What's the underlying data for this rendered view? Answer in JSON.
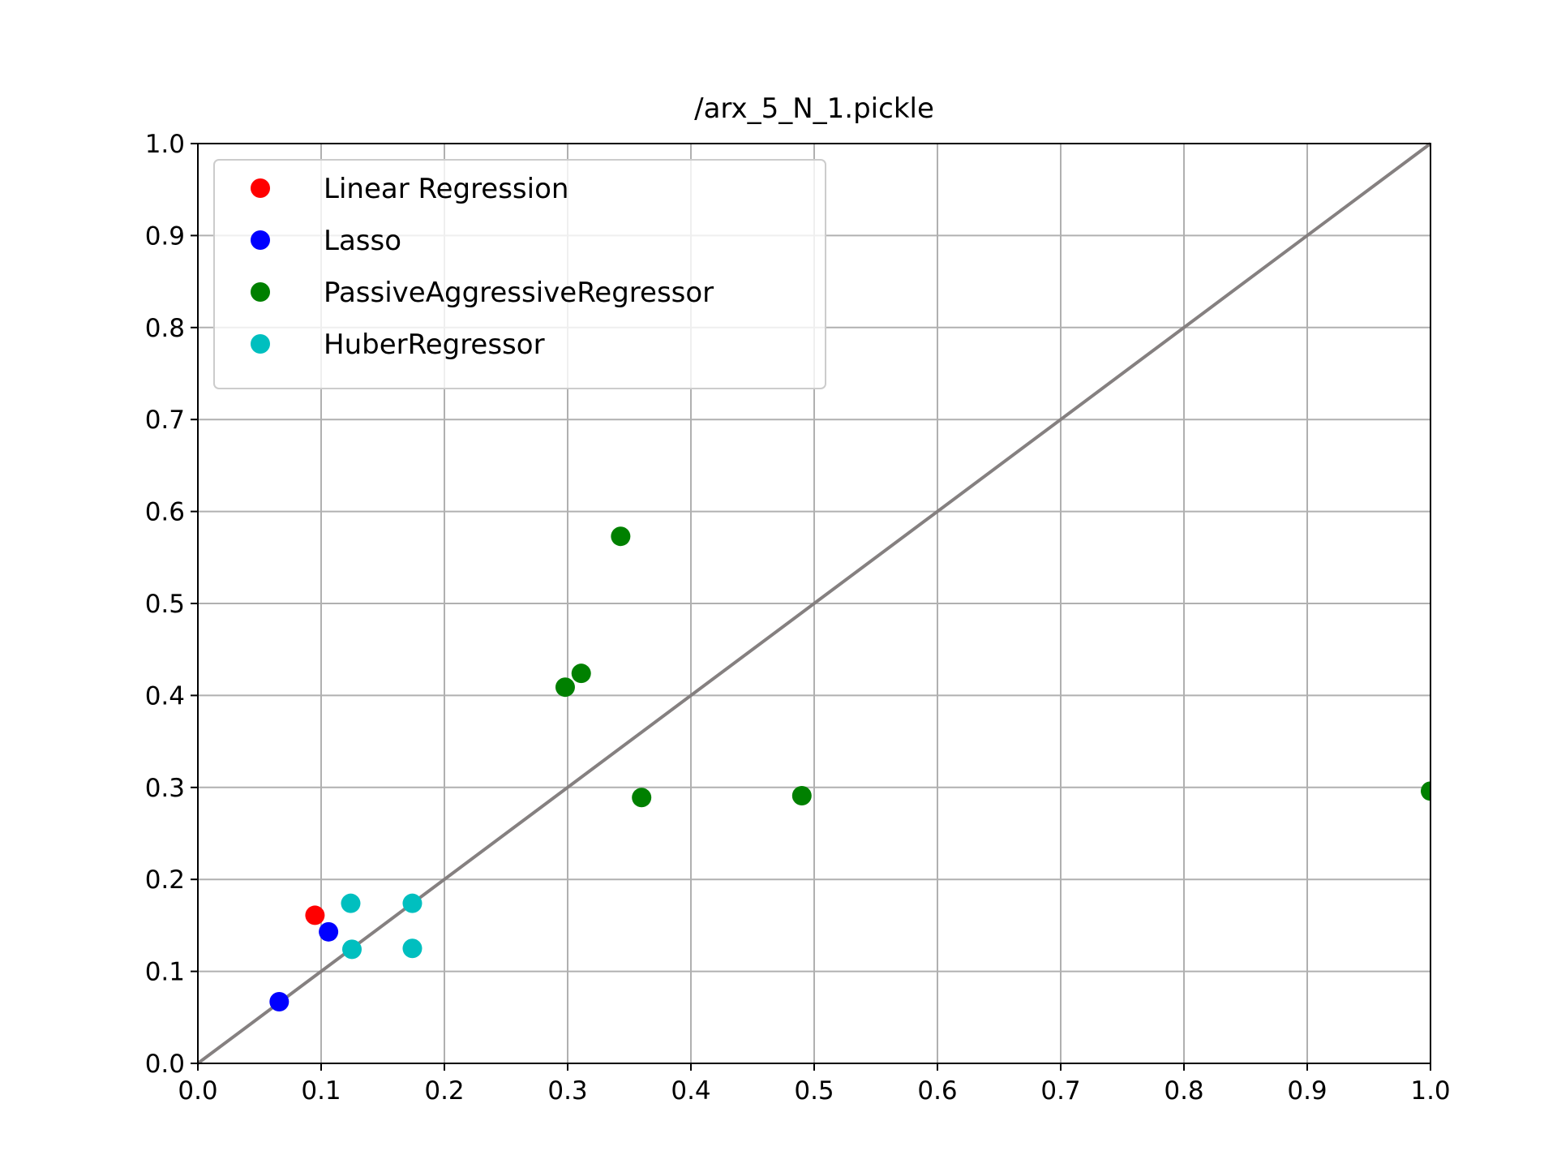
{
  "chart_data": {
    "type": "scatter",
    "title": "/arx_5_N_1.pickle",
    "xlabel": "",
    "ylabel": "",
    "xlim": [
      0.0,
      1.0
    ],
    "ylim": [
      0.0,
      1.0
    ],
    "xticks": [
      "0.0",
      "0.1",
      "0.2",
      "0.3",
      "0.4",
      "0.5",
      "0.6",
      "0.7",
      "0.8",
      "0.9",
      "1.0"
    ],
    "yticks": [
      "0.0",
      "0.1",
      "0.2",
      "0.3",
      "0.4",
      "0.5",
      "0.6",
      "0.7",
      "0.8",
      "0.9",
      "1.0"
    ],
    "grid": true,
    "legend_position": "upper-left",
    "reference_line": {
      "from": [
        0.0,
        0.0
      ],
      "to": [
        1.0,
        1.0
      ],
      "color": "#858080"
    },
    "series": [
      {
        "name": "Linear Regression",
        "color": "#ff0000",
        "points": [
          [
            0.095,
            0.161
          ]
        ]
      },
      {
        "name": "Lasso",
        "color": "#0000ff",
        "points": [
          [
            0.066,
            0.067
          ],
          [
            0.106,
            0.143
          ]
        ]
      },
      {
        "name": "PassiveAggressiveRegressor",
        "color": "#008000",
        "points": [
          [
            0.343,
            0.573
          ],
          [
            0.311,
            0.424
          ],
          [
            0.298,
            0.409
          ],
          [
            0.36,
            0.289
          ],
          [
            0.49,
            0.291
          ],
          [
            1.0,
            0.296
          ]
        ]
      },
      {
        "name": "HuberRegressor",
        "color": "#00bfbf",
        "points": [
          [
            0.124,
            0.174
          ],
          [
            0.174,
            0.174
          ],
          [
            0.125,
            0.124
          ],
          [
            0.174,
            0.125
          ]
        ]
      }
    ]
  }
}
